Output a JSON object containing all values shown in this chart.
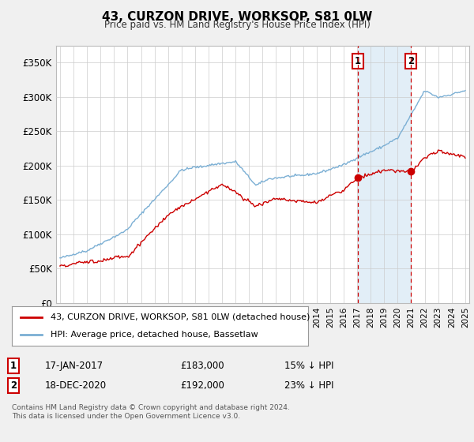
{
  "title": "43, CURZON DRIVE, WORKSOP, S81 0LW",
  "subtitle": "Price paid vs. HM Land Registry's House Price Index (HPI)",
  "legend_line1": "43, CURZON DRIVE, WORKSOP, S81 0LW (detached house)",
  "legend_line2": "HPI: Average price, detached house, Bassetlaw",
  "marker1_date": "17-JAN-2017",
  "marker1_price": "£183,000",
  "marker1_hpi": "15% ↓ HPI",
  "marker1_x": 2017.04,
  "marker1_y": 183000,
  "marker2_date": "18-DEC-2020",
  "marker2_price": "£192,000",
  "marker2_hpi": "23% ↓ HPI",
  "marker2_x": 2020.96,
  "marker2_y": 192000,
  "hpi_color": "#7bafd4",
  "price_color": "#cc0000",
  "shade_color": "#d6e8f5",
  "footer": "Contains HM Land Registry data © Crown copyright and database right 2024.\nThis data is licensed under the Open Government Licence v3.0.",
  "ylim": [
    0,
    375000
  ],
  "yticks": [
    0,
    50000,
    100000,
    150000,
    200000,
    250000,
    300000,
    350000
  ],
  "ytick_labels": [
    "£0",
    "£50K",
    "£100K",
    "£150K",
    "£200K",
    "£250K",
    "£300K",
    "£350K"
  ],
  "xmin": 1994.7,
  "xmax": 2025.3,
  "background_color": "#f0f0f0",
  "plot_bg_color": "#ffffff",
  "grid_color": "#cccccc"
}
